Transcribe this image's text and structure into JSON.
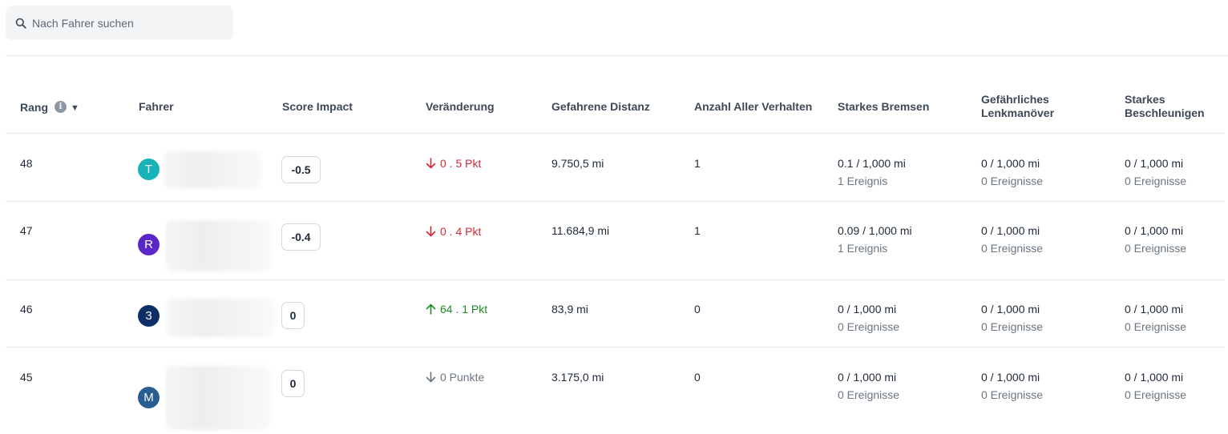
{
  "search": {
    "placeholder": "Nach Fahrer suchen"
  },
  "columns": {
    "rank": "Rang",
    "driver": "Fahrer",
    "score_impact": "Score Impact",
    "change": "Veränderung",
    "distance": "Gefahrene Distanz",
    "total_behaviors": "Anzahl Aller Verhalten",
    "harsh_braking": "Starkes Bremsen",
    "dangerous_steering": "Gefährliches Lenkmanöver",
    "harsh_acceleration": "Starkes Beschleunigen"
  },
  "rows": [
    {
      "rank": "48",
      "avatar_letter": "T",
      "avatar_color": "#17b3b8",
      "score": "-0.5",
      "change": "0 . 5 Pkt",
      "change_dir": "down",
      "change_color": "#d12a36",
      "distance": "9.750,5 mi",
      "total": "1",
      "braking_rate": "0.1 / 1,000 mi",
      "braking_events": "1 Ereignis",
      "steering_rate": "0 / 1,000 mi",
      "steering_events": "0 Ereignisse",
      "accel_rate": "0 / 1,000 mi",
      "accel_events": "0 Ereignisse"
    },
    {
      "rank": "47",
      "avatar_letter": "R",
      "avatar_color": "#5a26c8",
      "score": "-0.4",
      "change": "0 . 4 Pkt",
      "change_dir": "down",
      "change_color": "#d12a36",
      "distance": "11.684,9 mi",
      "total": "1",
      "braking_rate": "0.09 / 1,000 mi",
      "braking_events": "1 Ereignis",
      "steering_rate": "0 / 1,000 mi",
      "steering_events": "0 Ereignisse",
      "accel_rate": "0 / 1,000 mi",
      "accel_events": "0 Ereignisse"
    },
    {
      "rank": "46",
      "avatar_letter": "3",
      "avatar_color": "#0d2f66",
      "score": "0",
      "change": "64 . 1 Pkt",
      "change_dir": "up",
      "change_color": "#1f8a26",
      "distance": "83,9 mi",
      "total": "0",
      "braking_rate": "0 / 1,000 mi",
      "braking_events": "0 Ereignisse",
      "steering_rate": "0 / 1,000 mi",
      "steering_events": "0 Ereignisse",
      "accel_rate": "0 / 1,000 mi",
      "accel_events": "0 Ereignisse"
    },
    {
      "rank": "45",
      "avatar_letter": "M",
      "avatar_color": "#2a5d92",
      "score": "0",
      "change": "0 Punkte",
      "change_dir": "down",
      "change_color": "#6b7682",
      "distance": "3.175,0 mi",
      "total": "0",
      "braking_rate": "0 / 1,000 mi",
      "braking_events": "0 Ereignisse",
      "steering_rate": "0 / 1,000 mi",
      "steering_events": "0 Ereignisse",
      "accel_rate": "0 / 1,000 mi",
      "accel_events": "0 Ereignisse"
    }
  ]
}
